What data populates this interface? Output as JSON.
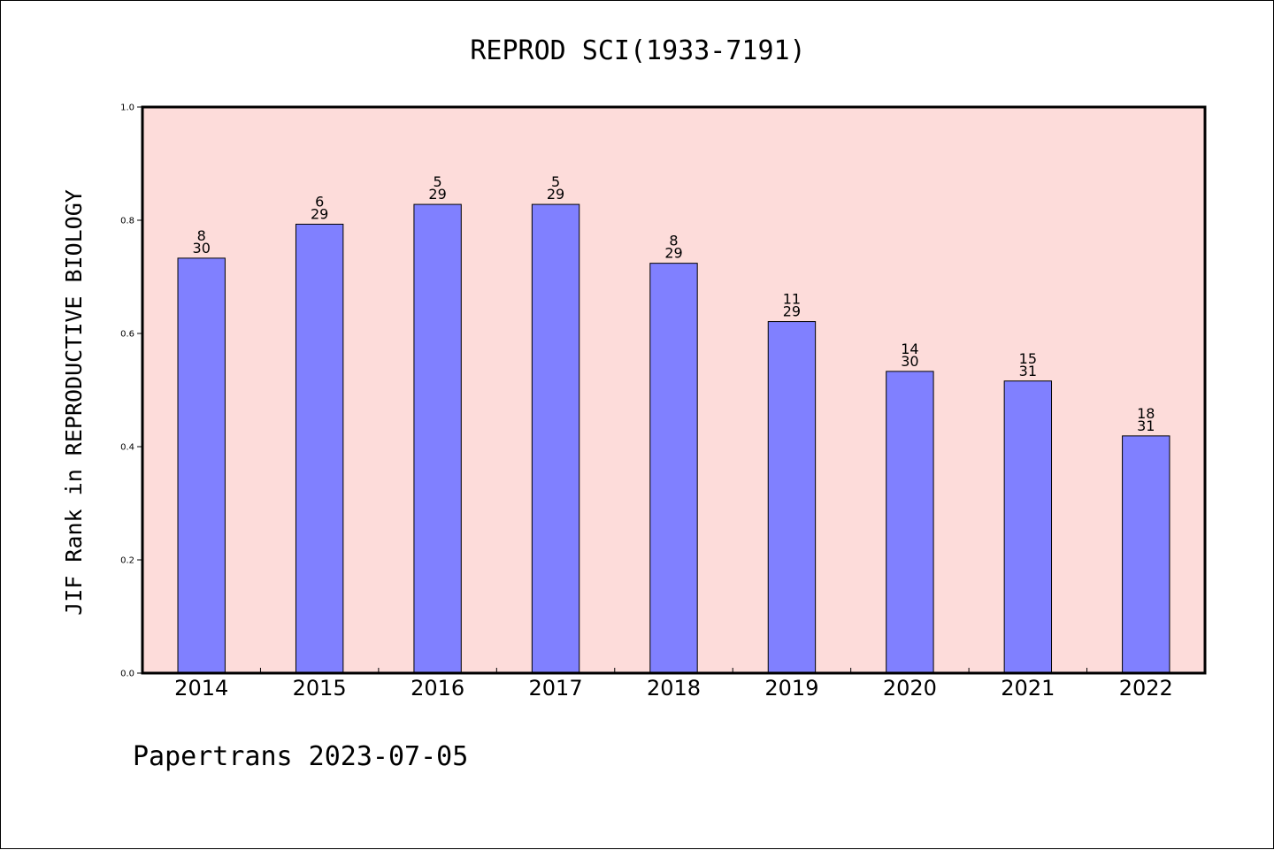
{
  "chart_data": {
    "type": "bar",
    "title": "REPROD SCI(1933-7191)",
    "xlabel": "",
    "ylabel": "JIF Rank in REPRODUCTIVE BIOLOGY",
    "ylim": [
      0,
      1.0
    ],
    "yticks": [
      "0.0",
      "0.2",
      "0.4",
      "0.6",
      "0.8",
      "1.0"
    ],
    "grid": false,
    "categories": [
      "2014",
      "2015",
      "2016",
      "2017",
      "2018",
      "2019",
      "2020",
      "2021",
      "2022"
    ],
    "values": [
      0.733,
      0.793,
      0.828,
      0.828,
      0.724,
      0.621,
      0.533,
      0.516,
      0.419
    ],
    "ranks": [
      "8",
      "6",
      "5",
      "5",
      "8",
      "11",
      "14",
      "15",
      "18"
    ],
    "totals": [
      "30",
      "29",
      "29",
      "29",
      "29",
      "29",
      "30",
      "31",
      "31"
    ],
    "colors": {
      "bar": "#8080ff",
      "plot_background": "#fddcda",
      "axes": "#000000"
    }
  },
  "footer": {
    "text": "Papertrans 2023-07-05"
  }
}
